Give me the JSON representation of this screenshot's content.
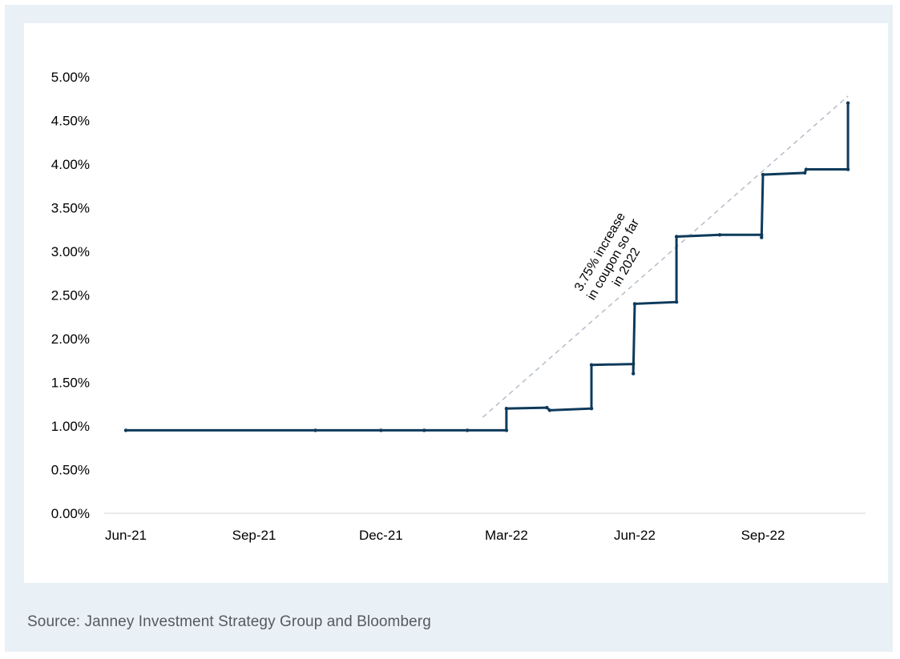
{
  "colors": {
    "line": "#0e3a5b",
    "trend": "#b4bdc8",
    "axis": "#d0d4d8",
    "frame_bg": "#e9f0f6",
    "source_text": "#555a60"
  },
  "source": "Source: Janney Investment Strategy Group and Bloomberg",
  "chart_data": {
    "type": "line",
    "title": "",
    "xlabel": "",
    "ylabel": "",
    "x_ticks": [
      "Jun-21",
      "Sep-21",
      "Dec-21",
      "Mar-22",
      "Jun-22",
      "Sep-22"
    ],
    "y_ticks": [
      "0.00%",
      "0.50%",
      "1.00%",
      "1.50%",
      "2.00%",
      "2.50%",
      "3.00%",
      "3.50%",
      "4.00%",
      "4.50%",
      "5.00%"
    ],
    "ylim": [
      0,
      5
    ],
    "grid": false,
    "legend": "none",
    "series": [
      {
        "step": true,
        "points": [
          {
            "x": "2021-06-01",
            "y": 0.95
          },
          {
            "x": "2021-10-15",
            "y": 0.95
          },
          {
            "x": "2021-12-01",
            "y": 0.95
          },
          {
            "x": "2022-01-01",
            "y": 0.95
          },
          {
            "x": "2022-02-01",
            "y": 0.95
          },
          {
            "x": "2022-03-01",
            "y": 0.95
          },
          {
            "x": "2022-03-01",
            "y": 1.2
          },
          {
            "x": "2022-03-30",
            "y": 1.21
          },
          {
            "x": "2022-04-01",
            "y": 1.18
          },
          {
            "x": "2022-05-01",
            "y": 1.2
          },
          {
            "x": "2022-05-01",
            "y": 1.7
          },
          {
            "x": "2022-05-31",
            "y": 1.71
          },
          {
            "x": "2022-05-31",
            "y": 1.6
          },
          {
            "x": "2022-06-01",
            "y": 2.4
          },
          {
            "x": "2022-07-01",
            "y": 2.42
          },
          {
            "x": "2022-07-01",
            "y": 3.17
          },
          {
            "x": "2022-08-01",
            "y": 3.19
          },
          {
            "x": "2022-08-31",
            "y": 3.19
          },
          {
            "x": "2022-08-31",
            "y": 3.16
          },
          {
            "x": "2022-09-01",
            "y": 3.88
          },
          {
            "x": "2022-10-01",
            "y": 3.9
          },
          {
            "x": "2022-10-02",
            "y": 3.94
          },
          {
            "x": "2022-11-01",
            "y": 3.94
          },
          {
            "x": "2022-11-01",
            "y": 4.7
          }
        ]
      }
    ],
    "trendline": {
      "from": {
        "x": "2022-02-12",
        "y": 1.1
      },
      "to": {
        "x": "2022-11-01",
        "y": 4.78
      }
    },
    "annotation": {
      "lines": [
        "3.75% increase",
        "in coupon so far",
        "in 2022"
      ],
      "rotation": -60
    }
  }
}
